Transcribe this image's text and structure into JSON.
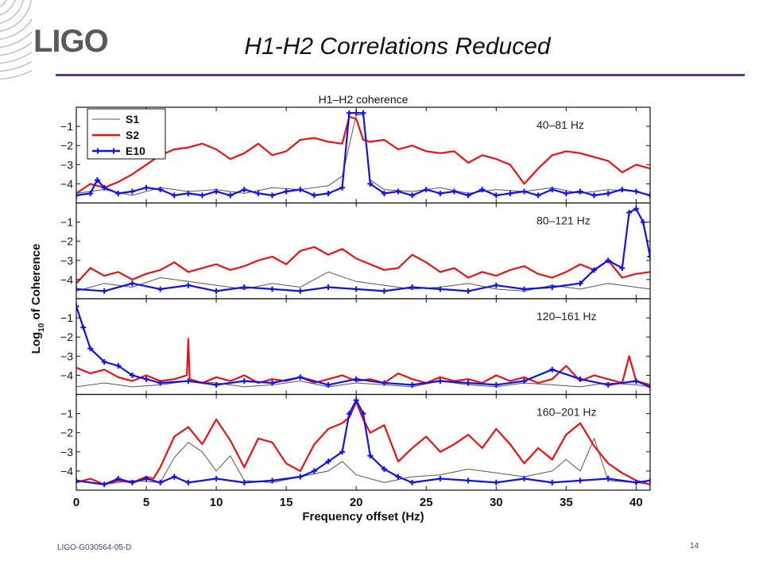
{
  "slide": {
    "logo": "LIGO",
    "title": "H1-H2 Correlations Reduced",
    "footer": "LIGO-G030564-05-D",
    "page_number": "14",
    "accent_color": "#6b2f8f"
  },
  "chart_data": {
    "type": "line",
    "title": "H1–H2 coherence",
    "xlabel": "Frequency offset (Hz)",
    "ylabel_base": "Log",
    "ylabel_sub": "10",
    "ylabel_rest": " of Coherence",
    "xlim": [
      0,
      41
    ],
    "ylim": [
      -5,
      0
    ],
    "xticks": [
      0,
      5,
      10,
      15,
      20,
      25,
      30,
      35,
      40
    ],
    "yticks": [
      -1,
      -2,
      -3,
      -4
    ],
    "ytick_labels": [
      "−1",
      "−2",
      "−3",
      "−4"
    ],
    "legend": {
      "placement": "top-left",
      "entries": [
        "S1",
        "S2",
        "E10"
      ]
    },
    "series_styles": [
      {
        "name": "S1",
        "color": "#555555"
      },
      {
        "name": "S2",
        "color": "#ee1111"
      },
      {
        "name": "E10",
        "color": "#1111ee",
        "marker": "plus"
      }
    ],
    "panels": [
      {
        "label": "40–81 Hz",
        "series": [
          {
            "name": "S1",
            "x": [
              0,
              2,
              4,
              6,
              8,
              10,
              12,
              14,
              16,
              18,
              19,
              20,
              20.5,
              21,
              22,
              24,
              26,
              28,
              30,
              32,
              34,
              36,
              38,
              40,
              41
            ],
            "y": [
              -4.5,
              -4.3,
              -4.6,
              -4.2,
              -4.4,
              -4.3,
              -4.5,
              -4.2,
              -4.3,
              -4.1,
              -3.6,
              -0.4,
              -0.4,
              -3.8,
              -4.3,
              -4.4,
              -4.2,
              -4.5,
              -4.3,
              -4.4,
              -4.2,
              -4.5,
              -4.3,
              -4.4,
              -4.6
            ]
          },
          {
            "name": "S2",
            "x": [
              0,
              1,
              2,
              3,
              4,
              5,
              6,
              7,
              8,
              9,
              10,
              11,
              12,
              13,
              14,
              15,
              16,
              17,
              18,
              19,
              19.5,
              20,
              20.5,
              21,
              22,
              23,
              24,
              25,
              26,
              27,
              28,
              29,
              30,
              31,
              32,
              33,
              34,
              35,
              36,
              37,
              38,
              39,
              40,
              41
            ],
            "y": [
              -4.5,
              -4.0,
              -4.2,
              -3.9,
              -3.5,
              -3.0,
              -2.5,
              -2.2,
              -2.1,
              -1.9,
              -2.2,
              -2.7,
              -2.4,
              -1.9,
              -2.5,
              -2.3,
              -1.7,
              -1.6,
              -1.8,
              -1.9,
              -0.5,
              -0.6,
              -1.7,
              -1.8,
              -1.7,
              -2.2,
              -2.0,
              -2.3,
              -2.4,
              -2.3,
              -2.9,
              -2.5,
              -2.7,
              -3.0,
              -4.0,
              -3.2,
              -2.5,
              -2.3,
              -2.4,
              -2.6,
              -2.8,
              -3.4,
              -3.0,
              -3.2
            ]
          },
          {
            "name": "E10",
            "x": [
              0,
              1,
              1.5,
              2,
              3,
              4,
              5,
              6,
              7,
              8,
              9,
              10,
              11,
              12,
              13,
              14,
              15,
              16,
              17,
              18,
              19,
              19.5,
              20,
              20.5,
              21,
              22,
              23,
              24,
              25,
              26,
              27,
              28,
              29,
              30,
              31,
              32,
              33,
              34,
              35,
              36,
              37,
              38,
              39,
              40,
              41
            ],
            "y": [
              -4.6,
              -4.5,
              -3.8,
              -4.2,
              -4.5,
              -4.4,
              -4.2,
              -4.3,
              -4.6,
              -4.5,
              -4.6,
              -4.4,
              -4.6,
              -4.3,
              -4.5,
              -4.6,
              -4.4,
              -4.3,
              -4.6,
              -4.5,
              -4.2,
              -0.3,
              -0.3,
              -0.3,
              -4.0,
              -4.5,
              -4.4,
              -4.6,
              -4.3,
              -4.5,
              -4.4,
              -4.6,
              -4.3,
              -4.6,
              -4.5,
              -4.4,
              -4.6,
              -4.3,
              -4.5,
              -4.4,
              -4.6,
              -4.5,
              -4.3,
              -4.4,
              -4.6
            ]
          }
        ]
      },
      {
        "label": "80–121 Hz",
        "series": [
          {
            "name": "S1",
            "x": [
              0,
              2,
              4,
              6,
              8,
              10,
              12,
              14,
              16,
              18,
              20,
              22,
              24,
              26,
              28,
              30,
              32,
              34,
              36,
              38,
              40,
              41
            ],
            "y": [
              -4.6,
              -4.2,
              -4.4,
              -3.9,
              -4.1,
              -4.3,
              -4.5,
              -4.2,
              -4.4,
              -3.6,
              -4.1,
              -4.3,
              -4.5,
              -4.4,
              -4.2,
              -4.5,
              -4.6,
              -4.3,
              -4.5,
              -4.2,
              -4.4,
              -4.5
            ]
          },
          {
            "name": "S2",
            "x": [
              0,
              1,
              2,
              3,
              4,
              5,
              6,
              7,
              8,
              9,
              10,
              11,
              12,
              13,
              14,
              15,
              16,
              17,
              18,
              19,
              20,
              21,
              22,
              23,
              24,
              25,
              26,
              27,
              28,
              29,
              30,
              31,
              32,
              33,
              34,
              35,
              36,
              37,
              38,
              39,
              40,
              41
            ],
            "y": [
              -4.2,
              -3.4,
              -3.8,
              -3.6,
              -4.0,
              -3.7,
              -3.5,
              -3.1,
              -3.6,
              -3.4,
              -3.2,
              -3.5,
              -3.3,
              -3.0,
              -2.8,
              -3.2,
              -2.5,
              -2.3,
              -2.7,
              -2.4,
              -2.9,
              -3.2,
              -3.5,
              -3.4,
              -2.7,
              -3.1,
              -3.6,
              -3.4,
              -3.9,
              -3.6,
              -3.8,
              -3.5,
              -3.3,
              -3.7,
              -3.9,
              -3.6,
              -3.2,
              -3.5,
              -3.0,
              -3.9,
              -3.7,
              -3.6
            ]
          },
          {
            "name": "E10",
            "x": [
              0,
              2,
              4,
              6,
              8,
              10,
              12,
              14,
              16,
              18,
              20,
              22,
              24,
              26,
              28,
              30,
              32,
              34,
              36,
              37,
              38,
              39,
              39.5,
              40,
              40.5,
              41
            ],
            "y": [
              -4.5,
              -4.6,
              -4.2,
              -4.5,
              -4.3,
              -4.6,
              -4.4,
              -4.5,
              -4.6,
              -4.4,
              -4.5,
              -4.6,
              -4.4,
              -4.5,
              -4.6,
              -4.3,
              -4.5,
              -4.4,
              -4.2,
              -3.5,
              -3.0,
              -3.4,
              -0.5,
              -0.3,
              -1.0,
              -2.8
            ]
          }
        ]
      },
      {
        "label": "120–161 Hz",
        "series": [
          {
            "name": "S1",
            "x": [
              0,
              2,
              4,
              6,
              8,
              10,
              12,
              14,
              16,
              18,
              20,
              22,
              24,
              26,
              28,
              30,
              32,
              34,
              36,
              38,
              40,
              41
            ],
            "y": [
              -4.6,
              -4.4,
              -4.6,
              -4.5,
              -4.3,
              -4.4,
              -4.6,
              -4.5,
              -4.3,
              -4.6,
              -4.4,
              -4.5,
              -4.6,
              -4.3,
              -4.5,
              -4.6,
              -4.4,
              -4.5,
              -4.6,
              -4.4,
              -4.5,
              -4.6
            ]
          },
          {
            "name": "S2",
            "x": [
              0,
              1,
              2,
              3,
              4,
              5,
              6,
              7,
              7.9,
              8,
              8.1,
              9,
              10,
              11,
              12,
              13,
              14,
              15,
              16,
              17,
              18,
              19,
              20,
              21,
              22,
              23,
              24,
              25,
              26,
              27,
              28,
              29,
              30,
              31,
              32,
              33,
              34,
              35,
              36,
              37,
              38,
              39,
              39.5,
              40,
              41
            ],
            "y": [
              -3.6,
              -3.9,
              -3.7,
              -4.1,
              -4.3,
              -4.0,
              -4.3,
              -4.2,
              -4.0,
              -2.1,
              -4.2,
              -4.4,
              -4.1,
              -4.3,
              -4.0,
              -4.4,
              -4.2,
              -4.3,
              -4.1,
              -4.4,
              -4.2,
              -4.0,
              -4.3,
              -4.2,
              -4.4,
              -3.9,
              -4.2,
              -4.4,
              -4.1,
              -4.3,
              -4.2,
              -4.4,
              -4.0,
              -4.3,
              -4.1,
              -4.4,
              -4.2,
              -3.5,
              -4.3,
              -4.0,
              -4.2,
              -4.4,
              -3.0,
              -4.3,
              -4.5
            ]
          },
          {
            "name": "E10",
            "x": [
              0,
              0.5,
              1,
              2,
              3,
              4,
              5,
              6,
              8,
              10,
              12,
              14,
              16,
              18,
              20,
              22,
              24,
              26,
              28,
              30,
              32,
              34,
              36,
              38,
              40,
              41
            ],
            "y": [
              -0.4,
              -1.5,
              -2.6,
              -3.3,
              -3.5,
              -4.0,
              -4.2,
              -4.4,
              -4.3,
              -4.5,
              -4.3,
              -4.4,
              -4.1,
              -4.5,
              -4.2,
              -4.4,
              -4.5,
              -4.3,
              -4.4,
              -4.5,
              -4.3,
              -3.7,
              -4.2,
              -4.5,
              -4.3,
              -4.6
            ]
          }
        ]
      },
      {
        "label": "160–201 Hz",
        "series": [
          {
            "name": "S1",
            "x": [
              0,
              2,
              4,
              6,
              7,
              8,
              9,
              10,
              11,
              12,
              14,
              16,
              18,
              19,
              20,
              21,
              22,
              24,
              26,
              28,
              30,
              32,
              34,
              35,
              36,
              37,
              38,
              40,
              41
            ],
            "y": [
              -4.5,
              -4.7,
              -4.5,
              -4.6,
              -3.3,
              -2.5,
              -3.0,
              -4.0,
              -3.2,
              -4.5,
              -4.6,
              -4.3,
              -4.0,
              -3.5,
              -4.2,
              -4.4,
              -4.6,
              -4.3,
              -4.2,
              -3.9,
              -4.1,
              -4.3,
              -4.0,
              -3.4,
              -4.0,
              -2.3,
              -4.5,
              -4.6,
              -4.7
            ]
          },
          {
            "name": "S2",
            "x": [
              0,
              1,
              2,
              3,
              4,
              5,
              5.5,
              6,
              7,
              8,
              9,
              10,
              11,
              12,
              13,
              14,
              15,
              16,
              17,
              18,
              19,
              19.5,
              20,
              20.5,
              21,
              22,
              23,
              24,
              25,
              26,
              27,
              28,
              29,
              30,
              31,
              32,
              33,
              34,
              35,
              36,
              37,
              38,
              39,
              40,
              41
            ],
            "y": [
              -4.6,
              -4.4,
              -4.7,
              -4.5,
              -4.6,
              -4.3,
              -4.4,
              -3.8,
              -2.2,
              -1.7,
              -2.6,
              -1.3,
              -2.4,
              -3.8,
              -2.3,
              -2.5,
              -3.6,
              -4.0,
              -2.6,
              -1.8,
              -1.5,
              -1.2,
              -0.4,
              -1.3,
              -2.0,
              -1.6,
              -3.5,
              -2.8,
              -2.2,
              -3.0,
              -2.6,
              -2.1,
              -2.8,
              -1.8,
              -2.6,
              -3.6,
              -2.8,
              -3.4,
              -2.1,
              -1.5,
              -2.7,
              -3.6,
              -4.1,
              -4.5,
              -4.7
            ]
          },
          {
            "name": "E10",
            "x": [
              0,
              2,
              3,
              4,
              5,
              6,
              7,
              8,
              10,
              12,
              14,
              16,
              17,
              18,
              19,
              19.5,
              20,
              20.5,
              21,
              22,
              23,
              24,
              26,
              28,
              30,
              32,
              34,
              36,
              38,
              40,
              41
            ],
            "y": [
              -4.5,
              -4.7,
              -4.4,
              -4.6,
              -4.4,
              -4.6,
              -4.3,
              -4.6,
              -4.4,
              -4.6,
              -4.5,
              -4.3,
              -4.0,
              -3.5,
              -3.0,
              -1.0,
              -0.3,
              -1.0,
              -3.2,
              -3.9,
              -4.3,
              -4.6,
              -4.4,
              -4.5,
              -4.6,
              -4.4,
              -4.6,
              -4.5,
              -4.4,
              -4.6,
              -4.5
            ]
          }
        ]
      }
    ]
  }
}
